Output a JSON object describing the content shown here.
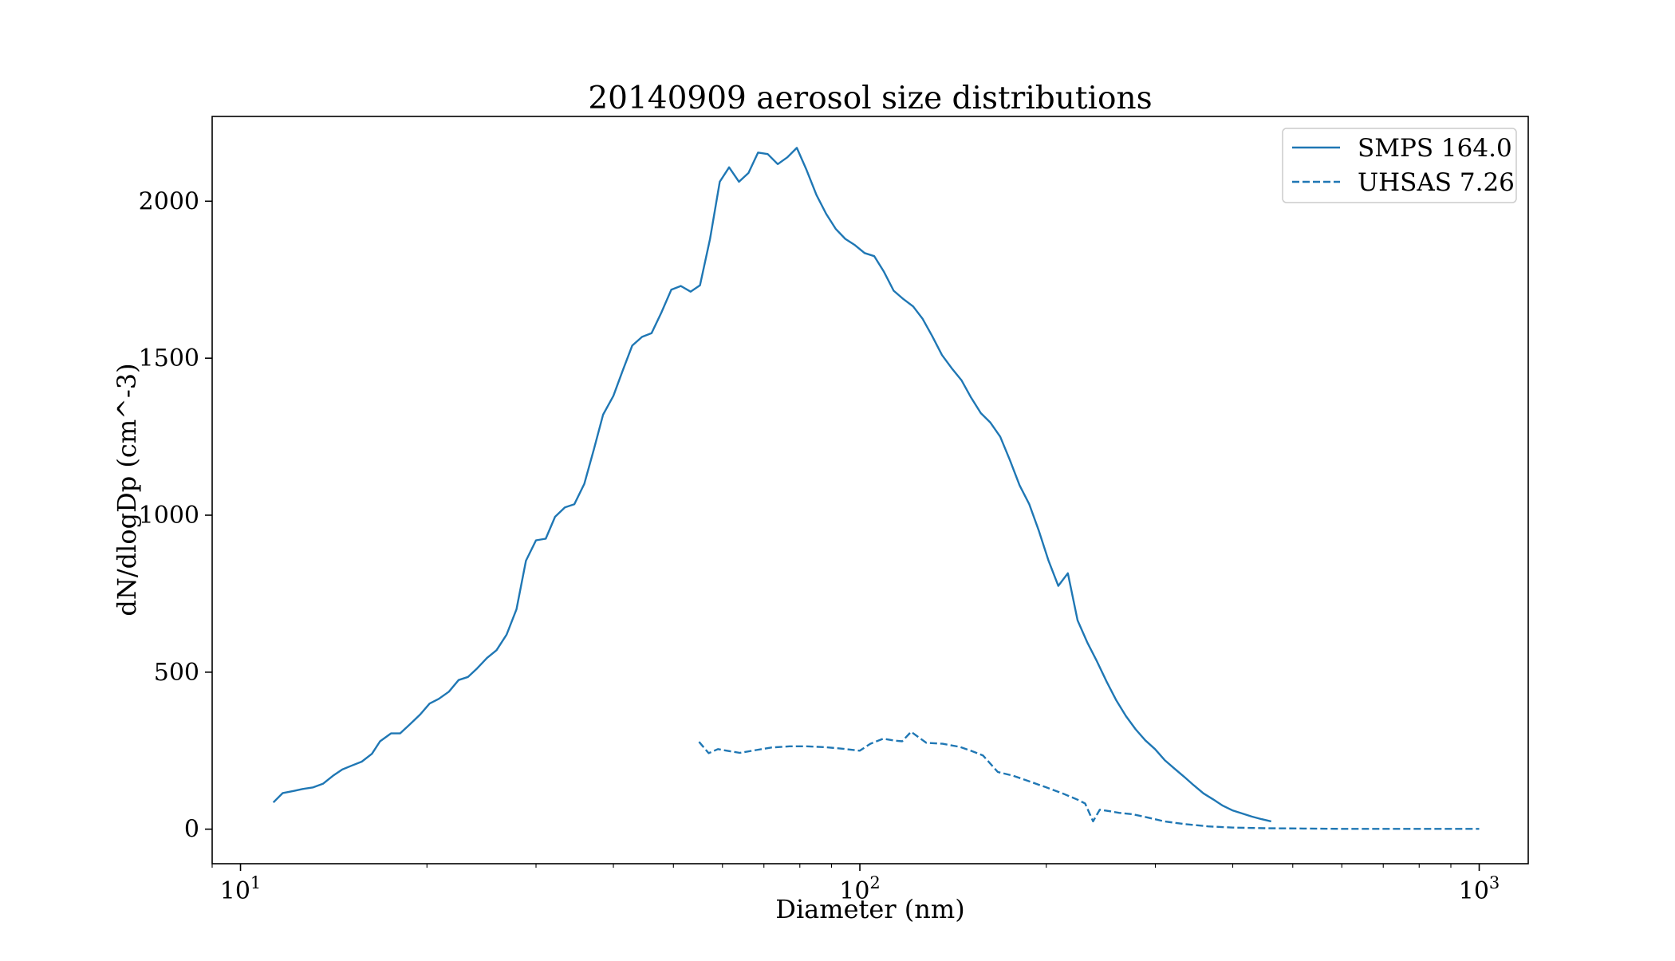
{
  "chart_data": {
    "type": "line",
    "title": "20140909 aerosol size distributions",
    "xlabel": "Diameter (nm)",
    "ylabel": "dN/dlogDp (cm^-3)",
    "xscale": "log",
    "xlim": [
      9,
      1200
    ],
    "ylim": [
      -110,
      2270
    ],
    "grid": false,
    "legend_position": "top-right",
    "x_ticks": [
      {
        "value": 10,
        "base": "10",
        "exp": "1"
      },
      {
        "value": 100,
        "base": "10",
        "exp": "2"
      },
      {
        "value": 1000,
        "base": "10",
        "exp": "3"
      }
    ],
    "y_ticks": [
      0,
      500,
      1000,
      1500,
      2000
    ],
    "y_tick_labels": [
      "0",
      "500",
      "1000",
      "1500",
      "2000"
    ],
    "line_color": "#1f77b4",
    "series": [
      {
        "name": "SMPS 164.0",
        "style": "solid",
        "x": [
          11.3,
          11.7,
          12.2,
          12.6,
          13.1,
          13.6,
          14.1,
          14.6,
          15.1,
          15.7,
          16.3,
          16.8,
          17.5,
          18.1,
          18.8,
          19.5,
          20.2,
          20.9,
          21.7,
          22.5,
          23.3,
          24.1,
          25.0,
          25.9,
          26.9,
          27.9,
          28.9,
          30.0,
          31.1,
          32.2,
          33.4,
          34.6,
          35.9,
          37.2,
          38.5,
          40.0,
          41.4,
          42.9,
          44.5,
          46.1,
          47.8,
          49.6,
          51.4,
          53.3,
          55.2,
          57.3,
          59.4,
          61.5,
          63.8,
          66.1,
          68.5,
          71.0,
          73.7,
          76.4,
          79.1,
          82.0,
          85.1,
          88.2,
          91.4,
          94.7,
          98.2,
          101.8,
          105.5,
          109.4,
          113.4,
          117.6,
          121.9,
          126.3,
          130.9,
          135.7,
          140.7,
          145.9,
          151.2,
          156.8,
          162.5,
          168.5,
          174.7,
          181.1,
          187.7,
          194.6,
          201.7,
          209.1,
          216.7,
          224.7,
          232.9,
          241.4,
          250.3,
          259.5,
          269.0,
          278.8,
          289.0,
          299.6,
          310.6,
          322.0,
          333.8,
          346.0,
          358.7,
          371.8,
          385.4,
          399.5,
          414.2,
          429.4,
          445.1,
          461.4
        ],
        "y": [
          85,
          115,
          122,
          128,
          133,
          145,
          170,
          190,
          202,
          215,
          240,
          280,
          305,
          305,
          335,
          365,
          400,
          415,
          438,
          475,
          485,
          512,
          545,
          570,
          620,
          700,
          855,
          920,
          925,
          995,
          1025,
          1035,
          1100,
          1210,
          1320,
          1380,
          1460,
          1540,
          1568,
          1580,
          1645,
          1718,
          1730,
          1712,
          1732,
          1880,
          2062,
          2108,
          2062,
          2090,
          2155,
          2150,
          2118,
          2140,
          2170,
          2100,
          2020,
          1960,
          1912,
          1880,
          1860,
          1835,
          1825,
          1775,
          1715,
          1688,
          1665,
          1625,
          1570,
          1510,
          1468,
          1430,
          1375,
          1325,
          1295,
          1250,
          1175,
          1095,
          1035,
          950,
          855,
          775,
          815,
          665,
          595,
          535,
          470,
          410,
          360,
          318,
          283,
          255,
          220,
          193,
          167,
          140,
          114,
          95,
          75,
          60,
          50,
          40,
          32,
          25
        ]
      },
      {
        "name": "UHSAS 7.26",
        "style": "dashed",
        "x": [
          55.0,
          57.0,
          59.0,
          61.0,
          64.0,
          68.0,
          72.0,
          77.0,
          82.0,
          88.0,
          94.0,
          100.0,
          104.0,
          109.0,
          114.0,
          117.0,
          121.0,
          128.0,
          136.0,
          145.0,
          151.0,
          158.0,
          167.0,
          177.0,
          188.0,
          200.0,
          213.0,
          224.0,
          231.0,
          238.0,
          244.0,
          252.0,
          262.0,
          275.0,
          290.0,
          310.0,
          335.0,
          365.0,
          400.0,
          450.0,
          520.0,
          600.0,
          700.0,
          800.0,
          900.0,
          1000.0
        ],
        "y": [
          278,
          242,
          255,
          250,
          243,
          252,
          260,
          264,
          264,
          261,
          256,
          250,
          272,
          288,
          282,
          280,
          310,
          275,
          272,
          262,
          250,
          235,
          182,
          170,
          152,
          133,
          113,
          95,
          82,
          25,
          62,
          58,
          52,
          48,
          38,
          25,
          16,
          9,
          5,
          3,
          2,
          1,
          1,
          1,
          1,
          1
        ]
      }
    ]
  }
}
